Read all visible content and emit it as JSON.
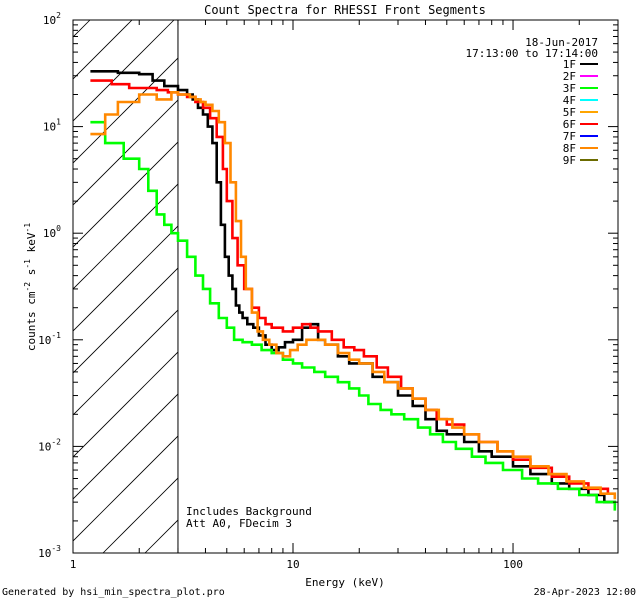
{
  "chart_data": {
    "type": "line",
    "title": "Count Spectra for RHESSI Front Segments",
    "xlabel": "Energy (keV)",
    "ylabel": "counts cm",
    "ylabel_sup1": "-2",
    "ylabel_mid": " s",
    "ylabel_sup2": "-1",
    "ylabel_end": " keV",
    "ylabel_sup3": "-1",
    "x_scale": "log",
    "y_scale": "log",
    "xlim": [
      1,
      300
    ],
    "ylim": [
      0.001,
      100
    ],
    "x_ticks": [
      {
        "value": 1,
        "label": "1"
      },
      {
        "value": 10,
        "label": "10"
      },
      {
        "value": 100,
        "label": "100"
      }
    ],
    "y_ticks": [
      {
        "value": 0.001,
        "base": "10",
        "exp": "-3"
      },
      {
        "value": 0.01,
        "base": "10",
        "exp": "-2"
      },
      {
        "value": 0.1,
        "base": "10",
        "exp": "-1"
      },
      {
        "value": 1,
        "base": "10",
        "exp": "0"
      },
      {
        "value": 10,
        "base": "10",
        "exp": "1"
      },
      {
        "value": 100,
        "base": "10",
        "exp": "2"
      }
    ],
    "shaded_region": {
      "x_start": 1,
      "x_end": 3.0,
      "style": "hatched"
    },
    "legend": {
      "placement": "top-right",
      "date": "18-Jun-2017",
      "time_range": "17:13:00 to 17:14:00",
      "entries": [
        {
          "name": "1F",
          "color": "#000000"
        },
        {
          "name": "2F",
          "color": "#ff00ff"
        },
        {
          "name": "3F",
          "color": "#00ff00"
        },
        {
          "name": "4F",
          "color": "#00ffff"
        },
        {
          "name": "5F",
          "color": "#ffa500"
        },
        {
          "name": "6F",
          "color": "#ff0000"
        },
        {
          "name": "7F",
          "color": "#0000ff"
        },
        {
          "name": "8F",
          "color": "#ff8800"
        },
        {
          "name": "9F",
          "color": "#6b6b00"
        }
      ]
    },
    "annotations": [
      "Includes Background",
      "Att A0, FDecim 3"
    ],
    "series": [
      {
        "name": "1F",
        "color": "#000000",
        "points": [
          [
            1.2,
            33
          ],
          [
            1.6,
            32
          ],
          [
            2.0,
            31
          ],
          [
            2.3,
            27
          ],
          [
            2.6,
            24
          ],
          [
            3.0,
            22
          ],
          [
            3.3,
            20
          ],
          [
            3.5,
            18
          ],
          [
            3.7,
            15
          ],
          [
            3.9,
            13
          ],
          [
            4.1,
            10
          ],
          [
            4.3,
            7
          ],
          [
            4.5,
            3
          ],
          [
            4.7,
            1.2
          ],
          [
            4.9,
            0.6
          ],
          [
            5.1,
            0.4
          ],
          [
            5.3,
            0.3
          ],
          [
            5.5,
            0.21
          ],
          [
            5.7,
            0.18
          ],
          [
            5.9,
            0.16
          ],
          [
            6.2,
            0.14
          ],
          [
            6.6,
            0.13
          ],
          [
            7.0,
            0.11
          ],
          [
            7.5,
            0.09
          ],
          [
            8.0,
            0.08
          ],
          [
            8.6,
            0.085
          ],
          [
            9.2,
            0.095
          ],
          [
            10,
            0.1
          ],
          [
            11,
            0.13
          ],
          [
            12,
            0.14
          ],
          [
            13,
            0.1
          ],
          [
            14,
            0.09
          ],
          [
            16,
            0.07
          ],
          [
            18,
            0.06
          ],
          [
            20,
            0.06
          ],
          [
            23,
            0.045
          ],
          [
            26,
            0.04
          ],
          [
            30,
            0.03
          ],
          [
            35,
            0.024
          ],
          [
            40,
            0.018
          ],
          [
            45,
            0.014
          ],
          [
            50,
            0.013
          ],
          [
            60,
            0.011
          ],
          [
            70,
            0.009
          ],
          [
            80,
            0.008
          ],
          [
            100,
            0.0065
          ],
          [
            120,
            0.0055
          ],
          [
            150,
            0.0045
          ],
          [
            180,
            0.004
          ],
          [
            220,
            0.0035
          ],
          [
            260,
            0.003
          ],
          [
            290,
            0.0028
          ]
        ]
      },
      {
        "name": "3F",
        "color": "#00ff00",
        "points": [
          [
            1.2,
            11
          ],
          [
            1.4,
            7
          ],
          [
            1.7,
            5
          ],
          [
            2.0,
            4
          ],
          [
            2.2,
            2.5
          ],
          [
            2.4,
            1.5
          ],
          [
            2.6,
            1.2
          ],
          [
            2.8,
            1.0
          ],
          [
            3.0,
            0.85
          ],
          [
            3.3,
            0.6
          ],
          [
            3.6,
            0.4
          ],
          [
            3.9,
            0.3
          ],
          [
            4.2,
            0.22
          ],
          [
            4.6,
            0.16
          ],
          [
            5.0,
            0.13
          ],
          [
            5.4,
            0.1
          ],
          [
            5.9,
            0.095
          ],
          [
            6.5,
            0.09
          ],
          [
            7.2,
            0.08
          ],
          [
            8.0,
            0.075
          ],
          [
            9.0,
            0.065
          ],
          [
            10,
            0.06
          ],
          [
            11,
            0.055
          ],
          [
            12.5,
            0.05
          ],
          [
            14,
            0.045
          ],
          [
            16,
            0.04
          ],
          [
            18,
            0.035
          ],
          [
            20,
            0.03
          ],
          [
            22,
            0.025
          ],
          [
            25,
            0.022
          ],
          [
            28,
            0.02
          ],
          [
            32,
            0.018
          ],
          [
            37,
            0.015
          ],
          [
            42,
            0.013
          ],
          [
            48,
            0.011
          ],
          [
            55,
            0.0095
          ],
          [
            65,
            0.008
          ],
          [
            75,
            0.007
          ],
          [
            90,
            0.006
          ],
          [
            110,
            0.005
          ],
          [
            130,
            0.0045
          ],
          [
            160,
            0.004
          ],
          [
            200,
            0.0035
          ],
          [
            240,
            0.003
          ],
          [
            290,
            0.0025
          ]
        ]
      },
      {
        "name": "6F",
        "color": "#ff0000",
        "points": [
          [
            1.2,
            27
          ],
          [
            1.5,
            25
          ],
          [
            1.8,
            23
          ],
          [
            2.1,
            23
          ],
          [
            2.4,
            22
          ],
          [
            2.7,
            21
          ],
          [
            3.0,
            20
          ],
          [
            3.3,
            19
          ],
          [
            3.6,
            17
          ],
          [
            3.9,
            15
          ],
          [
            4.2,
            12
          ],
          [
            4.5,
            8
          ],
          [
            4.8,
            4
          ],
          [
            5.0,
            2
          ],
          [
            5.3,
            0.9
          ],
          [
            5.6,
            0.5
          ],
          [
            6.0,
            0.3
          ],
          [
            6.5,
            0.2
          ],
          [
            7.0,
            0.16
          ],
          [
            7.5,
            0.14
          ],
          [
            8.0,
            0.13
          ],
          [
            9,
            0.12
          ],
          [
            10,
            0.13
          ],
          [
            11,
            0.14
          ],
          [
            12,
            0.13
          ],
          [
            13,
            0.12
          ],
          [
            15,
            0.1
          ],
          [
            17,
            0.085
          ],
          [
            19,
            0.08
          ],
          [
            21,
            0.07
          ],
          [
            24,
            0.055
          ],
          [
            27,
            0.045
          ],
          [
            31,
            0.035
          ],
          [
            35,
            0.028
          ],
          [
            40,
            0.022
          ],
          [
            45,
            0.018
          ],
          [
            50,
            0.016
          ],
          [
            60,
            0.013
          ],
          [
            70,
            0.011
          ],
          [
            85,
            0.009
          ],
          [
            100,
            0.0075
          ],
          [
            120,
            0.0063
          ],
          [
            150,
            0.0052
          ],
          [
            180,
            0.0045
          ],
          [
            220,
            0.004
          ],
          [
            270,
            0.0035
          ]
        ]
      },
      {
        "name": "8F",
        "color": "#ff8800",
        "points": [
          [
            1.2,
            8.5
          ],
          [
            1.4,
            13
          ],
          [
            1.6,
            17
          ],
          [
            2.0,
            20
          ],
          [
            2.4,
            18
          ],
          [
            2.8,
            21
          ],
          [
            3.0,
            20
          ],
          [
            3.2,
            20
          ],
          [
            3.4,
            19
          ],
          [
            3.6,
            18
          ],
          [
            3.8,
            17
          ],
          [
            4.0,
            16
          ],
          [
            4.3,
            14
          ],
          [
            4.6,
            11
          ],
          [
            4.9,
            7
          ],
          [
            5.2,
            3
          ],
          [
            5.5,
            1.3
          ],
          [
            5.8,
            0.6
          ],
          [
            6.1,
            0.3
          ],
          [
            6.5,
            0.18
          ],
          [
            6.9,
            0.12
          ],
          [
            7.3,
            0.1
          ],
          [
            7.8,
            0.09
          ],
          [
            8.4,
            0.075
          ],
          [
            9.0,
            0.07
          ],
          [
            9.7,
            0.08
          ],
          [
            10.5,
            0.09
          ],
          [
            11.5,
            0.1
          ],
          [
            12.5,
            0.1
          ],
          [
            14,
            0.09
          ],
          [
            16,
            0.075
          ],
          [
            18,
            0.065
          ],
          [
            20,
            0.06
          ],
          [
            23,
            0.05
          ],
          [
            26,
            0.04
          ],
          [
            30,
            0.035
          ],
          [
            35,
            0.028
          ],
          [
            40,
            0.022
          ],
          [
            46,
            0.018
          ],
          [
            53,
            0.015
          ],
          [
            60,
            0.013
          ],
          [
            70,
            0.011
          ],
          [
            85,
            0.009
          ],
          [
            100,
            0.008
          ],
          [
            120,
            0.0065
          ],
          [
            145,
            0.0055
          ],
          [
            175,
            0.0047
          ],
          [
            210,
            0.0041
          ],
          [
            250,
            0.0036
          ],
          [
            290,
            0.0032
          ]
        ]
      }
    ]
  },
  "footer": {
    "generated_by": "Generated by hsi_min_spectra_plot.pro",
    "date": "28-Apr-2023 12:00"
  }
}
